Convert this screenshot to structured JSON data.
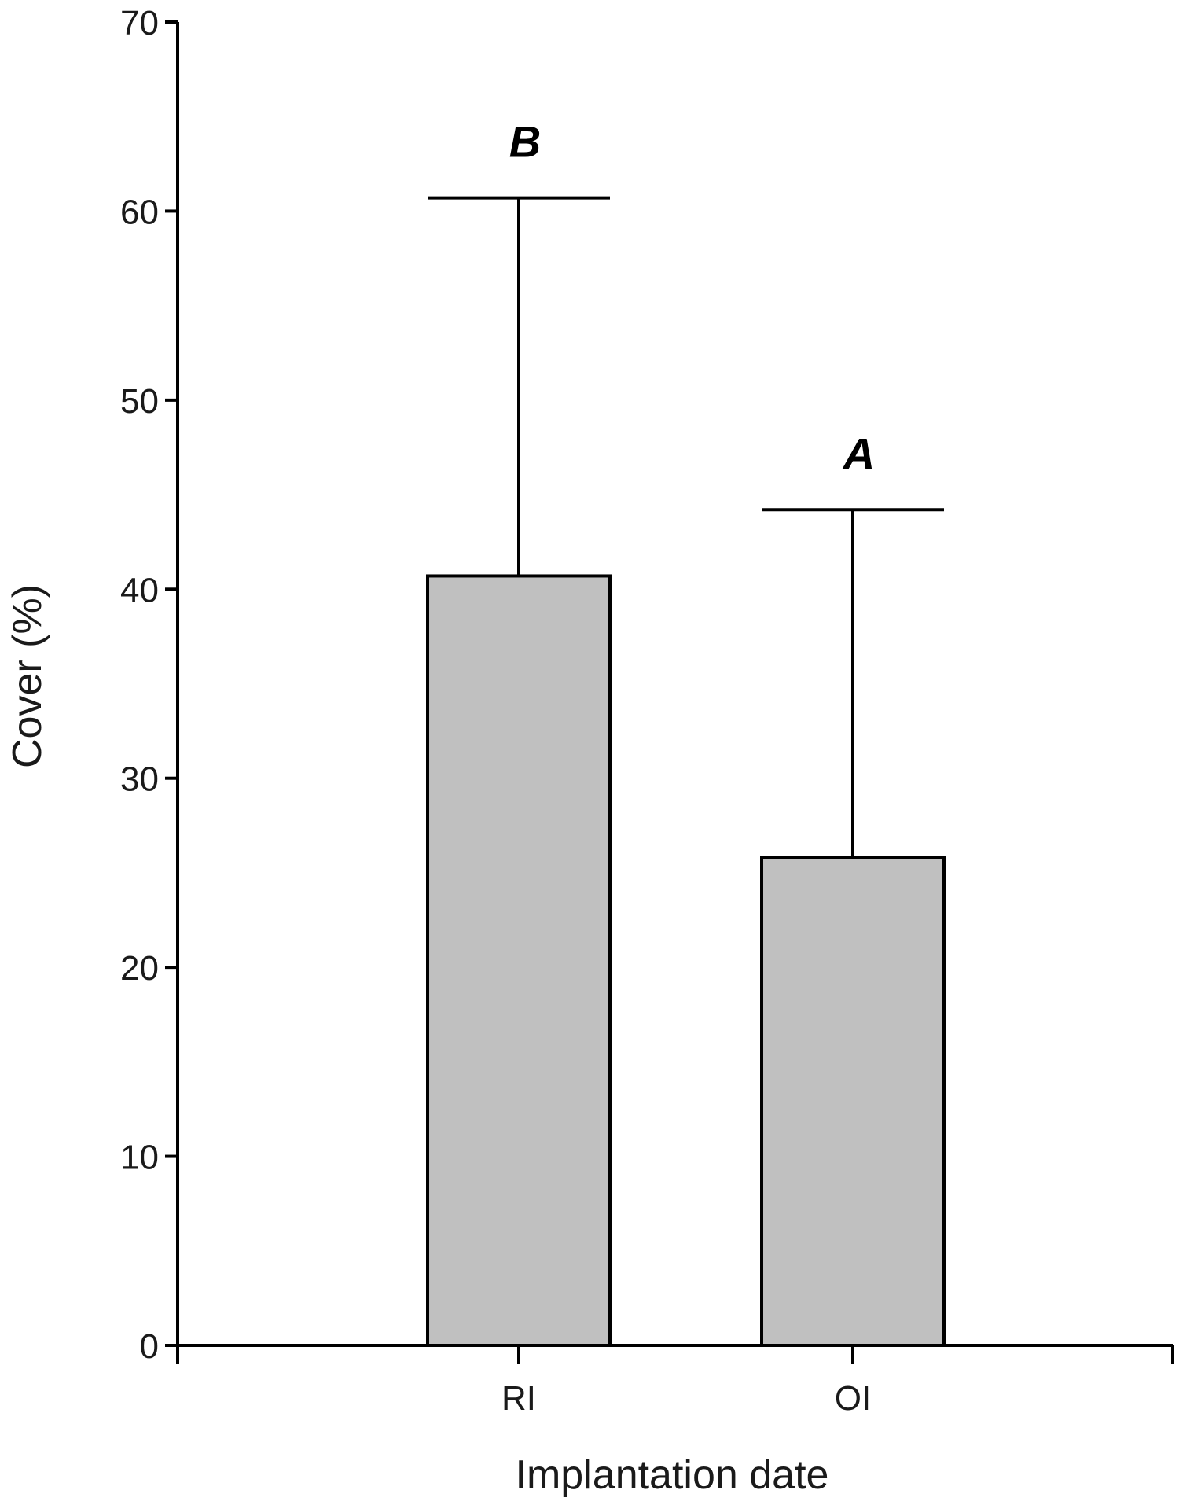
{
  "chart_data": {
    "type": "bar",
    "xlabel": "Implantation date",
    "ylabel": "Cover (%)",
    "ylim": [
      0,
      70
    ],
    "yticks": [
      "0",
      "10",
      "20",
      "30",
      "40",
      "50",
      "60",
      "70"
    ],
    "categories": [
      "RI",
      "OI"
    ],
    "values": [
      40.7,
      25.8
    ],
    "error_upper": [
      60.7,
      44.2
    ],
    "significance_labels": [
      "B",
      "A"
    ],
    "bar_color": "#c0c0c0",
    "grid": false
  }
}
